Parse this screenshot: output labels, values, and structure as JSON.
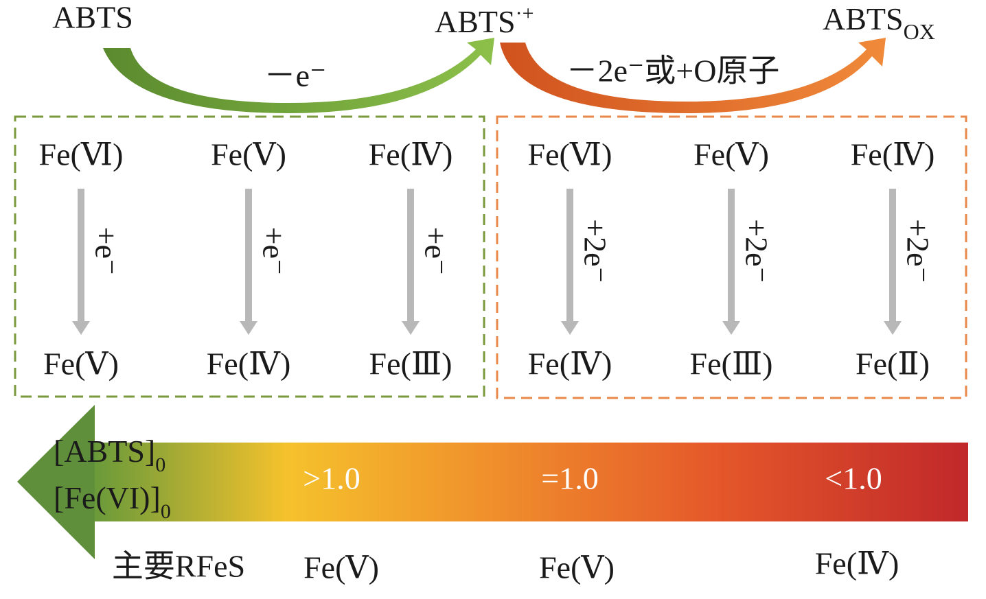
{
  "top": {
    "reactant": "ABTS",
    "radical": {
      "base": "ABTS",
      "sup": "·+"
    },
    "oxidized": {
      "base": "ABTS",
      "sub": "OX"
    },
    "step1": "－e⁻",
    "step2": "－2e⁻或+O原子"
  },
  "left_panel": {
    "columns": [
      {
        "from": "Fe(Ⅵ)",
        "arrow": "+e⁻",
        "to": "Fe(Ⅴ)"
      },
      {
        "from": "Fe(Ⅴ)",
        "arrow": "+e⁻",
        "to": "Fe(Ⅳ)"
      },
      {
        "from": "Fe(Ⅳ)",
        "arrow": "+e⁻",
        "to": "Fe(Ⅲ)"
      }
    ]
  },
  "right_panel": {
    "columns": [
      {
        "from": "Fe(Ⅵ)",
        "arrow": "+2e⁻",
        "to": "Fe(Ⅳ)"
      },
      {
        "from": "Fe(Ⅴ)",
        "arrow": "+2e⁻",
        "to": "Fe(Ⅲ)"
      },
      {
        "from": "Fe(Ⅳ)",
        "arrow": "+2e⁻",
        "to": "Fe(Ⅱ)"
      }
    ]
  },
  "ratio": {
    "numerator": {
      "base": "[ABTS]",
      "sub": "0"
    },
    "denominator": {
      "base": "[Fe(VI)]",
      "sub": "0"
    }
  },
  "levels": [
    ">1.0",
    "=1.0",
    "<1.0"
  ],
  "species": {
    "label": "主要RFeS",
    "values": [
      "Fe(Ⅴ)",
      "Fe(Ⅴ)",
      "Fe(Ⅳ)"
    ]
  }
}
